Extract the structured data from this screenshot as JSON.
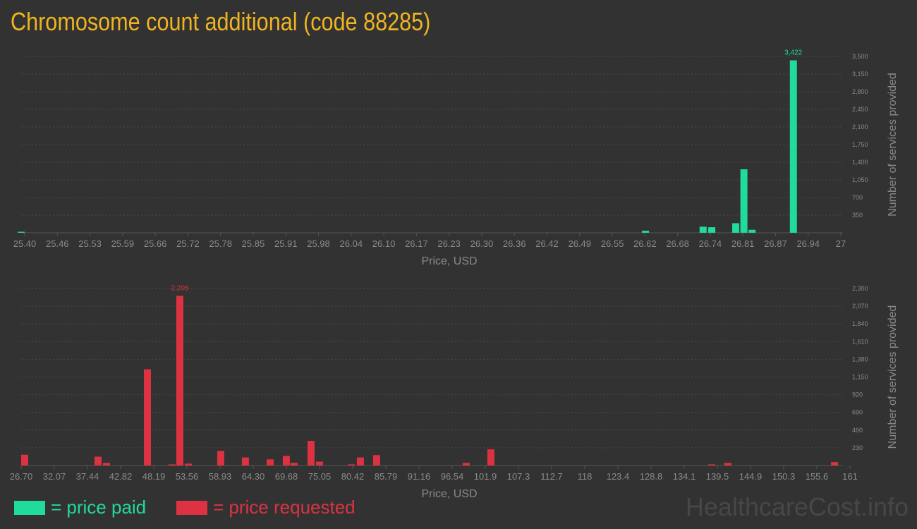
{
  "title": "Chromosome count additional (code 88285)",
  "colors": {
    "paid": "#20dc9c",
    "requested": "#dc3241",
    "title": "#f0b421"
  },
  "legend": {
    "paid": "= price paid",
    "requested": "= price requested"
  },
  "watermark": "HealthcareCost.info",
  "chart_data": [
    {
      "type": "bar",
      "name": "paid",
      "xlabel": "Price, USD",
      "ylabel": "Number of services provided",
      "xlim": [
        25.4,
        27
      ],
      "ylim": [
        0,
        3500
      ],
      "grid": true,
      "x_tick_labels": [
        "25.40",
        "25.46",
        "25.53",
        "25.59",
        "25.66",
        "25.72",
        "25.78",
        "25.85",
        "25.91",
        "25.98",
        "26.04",
        "26.10",
        "26.17",
        "26.23",
        "26.30",
        "26.36",
        "26.42",
        "26.49",
        "26.55",
        "26.62",
        "26.68",
        "26.74",
        "26.81",
        "26.87",
        "26.94",
        "27"
      ],
      "y_ticks": [
        350,
        700,
        1050,
        1400,
        1750,
        2100,
        2450,
        2800,
        3150,
        3500
      ],
      "y_tick_labels": [
        "350",
        "700",
        "1,050",
        "1,400",
        "1,750",
        "2,100",
        "2,450",
        "2,800",
        "3,150",
        "3,500"
      ],
      "x": [
        25.393,
        26.617,
        26.73,
        26.747,
        26.794,
        26.81,
        26.826,
        26.907
      ],
      "values": [
        20,
        40,
        120,
        110,
        190,
        1260,
        60,
        3422
      ],
      "peak_label": "3,422"
    },
    {
      "type": "bar",
      "name": "requested",
      "xlabel": "Price, USD",
      "ylabel": "Number of services provided",
      "xlim": [
        26.7,
        161
      ],
      "ylim": [
        0,
        2300
      ],
      "grid": true,
      "x_tick_labels": [
        "26.70",
        "32.07",
        "37.44",
        "42.82",
        "48.19",
        "53.56",
        "58.93",
        "64.30",
        "69.68",
        "75.05",
        "80.42",
        "85.79",
        "91.16",
        "96.54",
        "101.9",
        "107.3",
        "112.7",
        "118",
        "123.4",
        "128.8",
        "134.1",
        "139.5",
        "144.9",
        "150.3",
        "155.6",
        "161"
      ],
      "y_ticks": [
        230,
        460,
        690,
        920,
        1150,
        1380,
        1610,
        1840,
        2070,
        2300
      ],
      "y_tick_labels": [
        "230",
        "460",
        "690",
        "920",
        "1,150",
        "1,380",
        "1,610",
        "1,840",
        "2,070",
        "2,300"
      ],
      "x": [
        27.27,
        39.16,
        40.53,
        47.16,
        51.16,
        52.41,
        53.79,
        59.04,
        63.04,
        67.04,
        69.67,
        70.93,
        73.67,
        75.04,
        80.19,
        81.67,
        84.3,
        98.81,
        102.81,
        138.6,
        141.2,
        158.5
      ],
      "values": [
        140,
        115,
        35,
        1250,
        15,
        2205,
        25,
        190,
        105,
        80,
        125,
        35,
        320,
        50,
        15,
        105,
        135,
        35,
        210,
        15,
        35,
        45
      ],
      "peak_label": "2,205"
    }
  ]
}
